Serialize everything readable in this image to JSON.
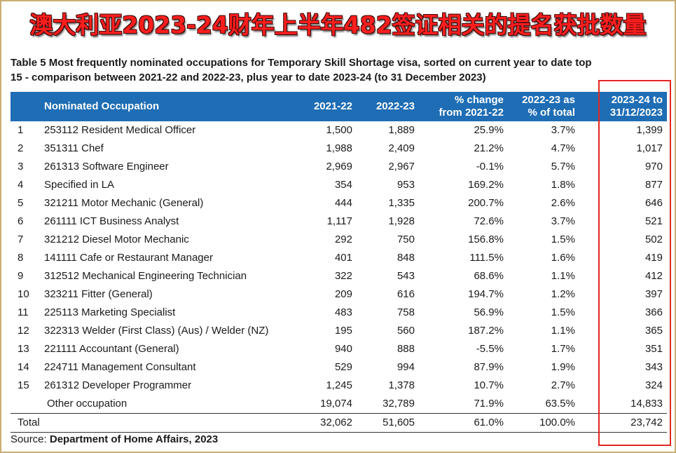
{
  "banner": {
    "title": "澳大利亚2023-24财年上半年482签证相关的提名获批数量"
  },
  "caption": "Table 5 Most frequently nominated occupations for Temporary Skill Shortage visa, sorted on current year to date top 15 - comparison between 2021-22 and 2022-23, plus year to date 2023-24 (to 31 December 2023)",
  "table": {
    "headers": {
      "occupation": "Nominated Occupation",
      "y2122": "2021-22",
      "y2223": "2022-23",
      "change": [
        "% change",
        "from 2021-22"
      ],
      "share": [
        "2022-23 as",
        "% of total"
      ],
      "ytd": [
        "2023-24 to",
        "31/12/2023"
      ]
    },
    "rows": [
      {
        "rank": "1",
        "occupation": "253112 Resident Medical Officer",
        "y2122": "1,500",
        "y2223": "1,889",
        "change": "25.9%",
        "share": "3.7%",
        "ytd": "1,399"
      },
      {
        "rank": "2",
        "occupation": "351311 Chef",
        "y2122": "1,988",
        "y2223": "2,409",
        "change": "21.2%",
        "share": "4.7%",
        "ytd": "1,017"
      },
      {
        "rank": "3",
        "occupation": "261313 Software Engineer",
        "y2122": "2,969",
        "y2223": "2,967",
        "change": "-0.1%",
        "share": "5.7%",
        "ytd": "970"
      },
      {
        "rank": "4",
        "occupation": "Specified in LA",
        "y2122": "354",
        "y2223": "953",
        "change": "169.2%",
        "share": "1.8%",
        "ytd": "877"
      },
      {
        "rank": "5",
        "occupation": "321211 Motor Mechanic (General)",
        "y2122": "444",
        "y2223": "1,335",
        "change": "200.7%",
        "share": "2.6%",
        "ytd": "646"
      },
      {
        "rank": "6",
        "occupation": "261111 ICT Business Analyst",
        "y2122": "1,117",
        "y2223": "1,928",
        "change": "72.6%",
        "share": "3.7%",
        "ytd": "521"
      },
      {
        "rank": "7",
        "occupation": "321212 Diesel Motor Mechanic",
        "y2122": "292",
        "y2223": "750",
        "change": "156.8%",
        "share": "1.5%",
        "ytd": "502"
      },
      {
        "rank": "8",
        "occupation": "141111 Cafe or Restaurant Manager",
        "y2122": "401",
        "y2223": "848",
        "change": "111.5%",
        "share": "1.6%",
        "ytd": "419"
      },
      {
        "rank": "9",
        "occupation": "312512 Mechanical Engineering Technician",
        "y2122": "322",
        "y2223": "543",
        "change": "68.6%",
        "share": "1.1%",
        "ytd": "412"
      },
      {
        "rank": "10",
        "occupation": "323211 Fitter (General)",
        "y2122": "209",
        "y2223": "616",
        "change": "194.7%",
        "share": "1.2%",
        "ytd": "397"
      },
      {
        "rank": "11",
        "occupation": "225113 Marketing Specialist",
        "y2122": "483",
        "y2223": "758",
        "change": "56.9%",
        "share": "1.5%",
        "ytd": "366"
      },
      {
        "rank": "12",
        "occupation": "322313 Welder (First Class) (Aus) / Welder (NZ)",
        "y2122": "195",
        "y2223": "560",
        "change": "187.2%",
        "share": "1.1%",
        "ytd": "365"
      },
      {
        "rank": "13",
        "occupation": "221111 Accountant (General)",
        "y2122": "940",
        "y2223": "888",
        "change": "-5.5%",
        "share": "1.7%",
        "ytd": "351"
      },
      {
        "rank": "14",
        "occupation": "224711 Management Consultant",
        "y2122": "529",
        "y2223": "994",
        "change": "87.9%",
        "share": "1.9%",
        "ytd": "343"
      },
      {
        "rank": "15",
        "occupation": "261312 Developer Programmer",
        "y2122": "1,245",
        "y2223": "1,378",
        "change": "10.7%",
        "share": "2.7%",
        "ytd": "324"
      }
    ],
    "other": {
      "occupation": "Other occupation",
      "y2122": "19,074",
      "y2223": "32,789",
      "change": "71.9%",
      "share": "63.5%",
      "ytd": "14,833"
    },
    "total": {
      "label": "Total",
      "y2122": "32,062",
      "y2223": "51,605",
      "change": "61.0%",
      "share": "100.0%",
      "ytd": "23,742"
    }
  },
  "source": {
    "prefix": "Source: ",
    "name": "Department of Home Affairs, 2023"
  },
  "colors": {
    "header_bg": "#1e6db5",
    "title_red": "#ff1e1e",
    "highlight": "#e42620",
    "frame": "#c9ad72"
  }
}
